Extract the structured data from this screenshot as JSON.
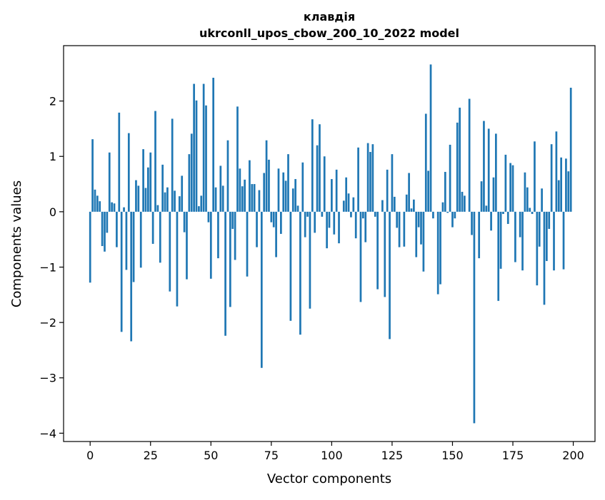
{
  "chart_data": {
    "type": "bar",
    "title": "клавдія",
    "subtitle": "ukrconll_upos_cbow_200_10_2022 model",
    "xlabel": "Vector components",
    "ylabel": "Components values",
    "xlim": [
      -11,
      209
    ],
    "ylim": [
      -4.15,
      3.0
    ],
    "xticks": [
      0,
      25,
      50,
      75,
      100,
      125,
      150,
      175,
      200
    ],
    "xtick_labels": [
      "0",
      "25",
      "50",
      "75",
      "100",
      "125",
      "150",
      "175",
      "200"
    ],
    "yticks": [
      -4,
      -3,
      -2,
      -1,
      0,
      1,
      2
    ],
    "ytick_labels": [
      "−4",
      "−3",
      "−2",
      "−1",
      "0",
      "1",
      "2"
    ],
    "grid": false,
    "bar_color": "#1f77b4",
    "x": [
      0,
      1,
      2,
      3,
      4,
      5,
      6,
      7,
      8,
      9,
      10,
      11,
      12,
      13,
      14,
      15,
      16,
      17,
      18,
      19,
      20,
      21,
      22,
      23,
      24,
      25,
      26,
      27,
      28,
      29,
      30,
      31,
      32,
      33,
      34,
      35,
      36,
      37,
      38,
      39,
      40,
      41,
      42,
      43,
      44,
      45,
      46,
      47,
      48,
      49,
      50,
      51,
      52,
      53,
      54,
      55,
      56,
      57,
      58,
      59,
      60,
      61,
      62,
      63,
      64,
      65,
      66,
      67,
      68,
      69,
      70,
      71,
      72,
      73,
      74,
      75,
      76,
      77,
      78,
      79,
      80,
      81,
      82,
      83,
      84,
      85,
      86,
      87,
      88,
      89,
      90,
      91,
      92,
      93,
      94,
      95,
      96,
      97,
      98,
      99,
      100,
      101,
      102,
      103,
      104,
      105,
      106,
      107,
      108,
      109,
      110,
      111,
      112,
      113,
      114,
      115,
      116,
      117,
      118,
      119,
      120,
      121,
      122,
      123,
      124,
      125,
      126,
      127,
      128,
      129,
      130,
      131,
      132,
      133,
      134,
      135,
      136,
      137,
      138,
      139,
      140,
      141,
      142,
      143,
      144,
      145,
      146,
      147,
      148,
      149,
      150,
      151,
      152,
      153,
      154,
      155,
      156,
      157,
      158,
      159,
      160,
      161,
      162,
      163,
      164,
      165,
      166,
      167,
      168,
      169,
      170,
      171,
      172,
      173,
      174,
      175,
      176,
      177,
      178,
      179,
      180,
      181,
      182,
      183,
      184,
      185,
      186,
      187,
      188,
      189,
      190,
      191,
      192,
      193,
      194,
      195,
      196,
      197,
      198,
      199
    ],
    "values": [
      -1.28,
      1.31,
      0.4,
      0.29,
      0.19,
      -0.62,
      -0.72,
      -0.38,
      1.07,
      0.17,
      0.15,
      -0.64,
      1.79,
      -2.17,
      0.08,
      -1.05,
      1.42,
      -2.34,
      -1.27,
      0.57,
      0.47,
      -1.01,
      1.13,
      0.43,
      0.8,
      1.07,
      -0.58,
      1.82,
      0.12,
      -0.92,
      0.85,
      0.35,
      0.44,
      -1.44,
      1.68,
      0.38,
      -1.71,
      0.28,
      0.65,
      -0.37,
      -1.22,
      1.04,
      1.41,
      2.31,
      2.01,
      0.1,
      0.29,
      2.31,
      1.92,
      -0.19,
      -1.21,
      2.42,
      0.44,
      -0.84,
      0.83,
      0.47,
      -2.24,
      1.29,
      -1.72,
      -0.31,
      -0.87,
      1.9,
      0.78,
      0.46,
      0.58,
      -1.17,
      0.93,
      0.5,
      0.5,
      -0.64,
      0.39,
      -2.82,
      0.7,
      1.29,
      0.94,
      -0.19,
      -0.28,
      -0.82,
      0.78,
      -0.4,
      0.71,
      0.56,
      1.04,
      -1.97,
      0.42,
      0.59,
      0.11,
      -2.22,
      0.89,
      -0.46,
      -0.09,
      -1.75,
      1.67,
      -0.38,
      1.2,
      1.58,
      -0.09,
      1.0,
      -0.66,
      -0.29,
      0.59,
      -0.41,
      0.76,
      -0.57,
      0.0,
      0.2,
      0.62,
      0.33,
      -0.1,
      0.26,
      -0.48,
      1.16,
      -1.63,
      -0.12,
      -0.55,
      1.24,
      1.08,
      1.22,
      -0.09,
      -1.4,
      0.0,
      0.21,
      -1.54,
      0.76,
      -2.3,
      1.04,
      0.27,
      -0.29,
      -0.64,
      0.0,
      -0.63,
      0.31,
      0.7,
      0.06,
      0.22,
      -0.82,
      -0.28,
      -0.59,
      -1.08,
      1.77,
      0.74,
      2.66,
      -0.12,
      0.0,
      -1.49,
      -1.31,
      0.17,
      0.72,
      -0.02,
      1.21,
      -0.28,
      -0.12,
      1.61,
      1.88,
      0.36,
      0.29,
      0.0,
      2.04,
      -0.42,
      -3.82,
      0.0,
      -0.84,
      0.55,
      1.64,
      0.11,
      1.5,
      -0.34,
      0.62,
      1.41,
      -1.61,
      -1.03,
      -0.04,
      1.03,
      -0.22,
      0.88,
      0.84,
      -0.91,
      0.0,
      -0.46,
      -1.06,
      0.71,
      0.44,
      0.07,
      -0.04,
      1.27,
      -1.33,
      -0.63,
      0.42,
      -1.68,
      -0.89,
      -0.31,
      1.22,
      -1.06,
      1.45,
      0.57,
      0.98,
      -1.04,
      0.96,
      0.73,
      2.24
    ]
  }
}
